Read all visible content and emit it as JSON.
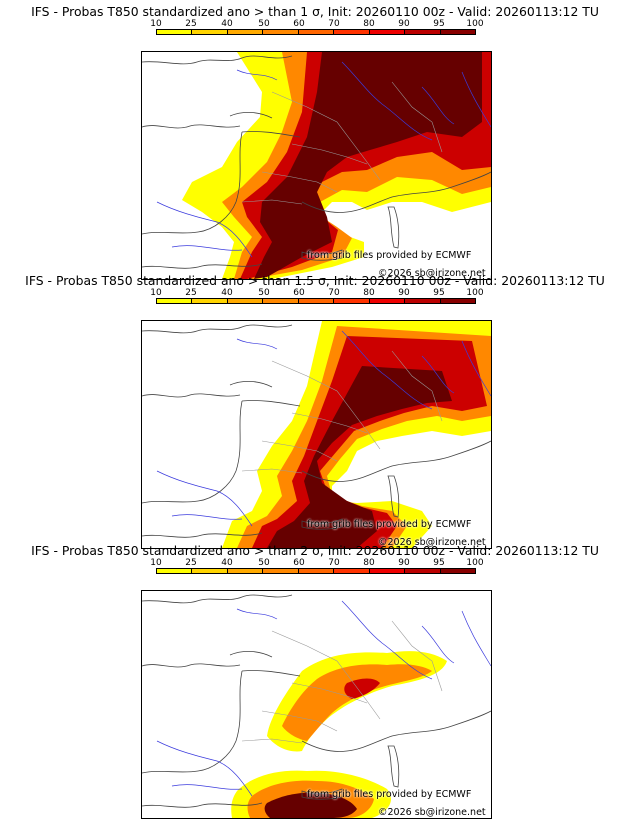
{
  "source_credit": "from grib files provided by ECMWF",
  "copyright": "©2026 sb@irizone.net",
  "scale": {
    "labels": [
      "10",
      "25",
      "40",
      "50",
      "60",
      "70",
      "80",
      "90",
      "95",
      "100"
    ],
    "colors": [
      "#ffff00",
      "#ffd400",
      "#ffaa00",
      "#ff8800",
      "#ff6600",
      "#ff3300",
      "#ee0000",
      "#bb0000",
      "#880000",
      "#550000"
    ]
  },
  "panels": [
    {
      "title": "IFS - Probas T850  standardized ano > than 1 σ, Init: 20260110 00z - Valid: 20260113:12 TU"
    },
    {
      "title": "IFS - Probas T850  standardized ano > than 1.5 σ, Init: 20260110 00z - Valid: 20260113:12 TU"
    },
    {
      "title": "IFS - Probas T850  standardized ano > than 2 σ, Init: 20260110 00z - Valid: 20260113:12 TU"
    }
  ]
}
